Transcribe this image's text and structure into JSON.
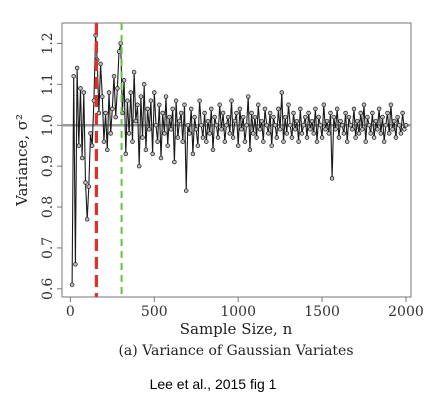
{
  "chart_data": {
    "type": "line",
    "xlabel": "Sample Size, n",
    "ylabel": "Variance, σ²",
    "xlim": [
      -50,
      2030
    ],
    "ylim": [
      0.58,
      1.25
    ],
    "xticks": [
      0,
      500,
      1000,
      1500,
      2000
    ],
    "xtick_labels": [
      "0",
      "500",
      "1000",
      "1500",
      "2000"
    ],
    "yticks": [
      0.6,
      0.7,
      0.8,
      0.9,
      1.0,
      1.1,
      1.2
    ],
    "ytick_labels": [
      "0.6",
      "0.7",
      "0.8",
      "0.9",
      "1.0",
      "1.1",
      "1.2"
    ],
    "grid": false,
    "reference_line": {
      "y": 1.0,
      "color": "#9a9a9a"
    },
    "vlines": [
      {
        "x": 155,
        "color": "#e0302a",
        "style": "dashed"
      },
      {
        "x": 305,
        "color": "#5fc53f",
        "style": "dashed"
      }
    ],
    "series": [
      {
        "color": "#1a1a1a",
        "marker": "circle",
        "x": [
          10,
          20,
          30,
          40,
          50,
          60,
          70,
          80,
          90,
          100,
          110,
          120,
          130,
          140,
          150,
          160,
          170,
          180,
          190,
          200,
          210,
          220,
          230,
          240,
          250,
          260,
          270,
          280,
          290,
          300,
          310,
          320,
          330,
          340,
          350,
          360,
          370,
          380,
          390,
          400,
          410,
          420,
          430,
          440,
          450,
          460,
          470,
          480,
          490,
          500,
          510,
          520,
          530,
          540,
          550,
          560,
          570,
          580,
          590,
          600,
          610,
          620,
          630,
          640,
          650,
          660,
          670,
          680,
          690,
          700,
          710,
          720,
          730,
          740,
          750,
          760,
          770,
          780,
          790,
          800,
          810,
          820,
          830,
          840,
          850,
          860,
          870,
          880,
          890,
          900,
          910,
          920,
          930,
          940,
          950,
          960,
          970,
          980,
          990,
          1000,
          1010,
          1020,
          1030,
          1040,
          1050,
          1060,
          1070,
          1080,
          1090,
          1100,
          1110,
          1120,
          1130,
          1140,
          1150,
          1160,
          1170,
          1180,
          1190,
          1200,
          1210,
          1220,
          1230,
          1240,
          1250,
          1260,
          1270,
          1280,
          1290,
          1300,
          1310,
          1320,
          1330,
          1340,
          1350,
          1360,
          1370,
          1380,
          1390,
          1400,
          1410,
          1420,
          1430,
          1440,
          1450,
          1460,
          1470,
          1480,
          1490,
          1500,
          1510,
          1520,
          1530,
          1540,
          1550,
          1560,
          1570,
          1580,
          1590,
          1600,
          1610,
          1620,
          1630,
          1640,
          1650,
          1660,
          1670,
          1680,
          1690,
          1700,
          1710,
          1720,
          1730,
          1740,
          1750,
          1760,
          1770,
          1780,
          1790,
          1800,
          1810,
          1820,
          1830,
          1840,
          1850,
          1860,
          1870,
          1880,
          1890,
          1900,
          1910,
          1920,
          1930,
          1940,
          1950,
          1960,
          1970,
          1980,
          1990,
          2000
        ],
        "y": [
          0.61,
          1.12,
          0.66,
          1.14,
          0.95,
          1.09,
          0.92,
          1.08,
          0.86,
          0.77,
          0.85,
          0.98,
          0.95,
          1.06,
          1.22,
          1.16,
          1.03,
          1.15,
          1.07,
          0.96,
          1.03,
          0.94,
          1.08,
          0.98,
          1.04,
          1.12,
          1.02,
          1.09,
          1.18,
          1.2,
          1.03,
          1.11,
          0.93,
          1.06,
          0.98,
          1.08,
          0.96,
          1.13,
          1.01,
          1.05,
          0.9,
          1.07,
          0.97,
          1.1,
          0.94,
          1.04,
          0.99,
          1.06,
          0.93,
          1.08,
          1.0,
          0.96,
          1.05,
          0.92,
          1.03,
          0.98,
          1.07,
          0.95,
          1.02,
          0.99,
          1.04,
          0.91,
          1.06,
          0.97,
          1.01,
          1.03,
          0.96,
          1.05,
          0.84,
          1.0,
          0.98,
          1.04,
          0.93,
          1.02,
          0.99,
          0.95,
          1.06,
          1.0,
          0.97,
          1.03,
          0.96,
          1.01,
          0.98,
          1.04,
          0.94,
          1.02,
          1.0,
          0.97,
          1.05,
          0.99,
          1.03,
          0.96,
          1.0,
          1.02,
          0.98,
          1.06,
          0.97,
          1.01,
          1.03,
          0.95,
          1.04,
          0.99,
          1.02,
          0.96,
          1.0,
          1.07,
          0.94,
          1.03,
          0.98,
          1.02,
          0.97,
          1.05,
          0.99,
          1.01,
          0.96,
          1.04,
          1.0,
          0.98,
          1.03,
          0.95,
          1.02,
          1.0,
          0.97,
          1.04,
          0.99,
          1.08,
          0.96,
          1.02,
          0.98,
          1.05,
          1.0,
          0.97,
          1.03,
          0.99,
          1.01,
          0.96,
          1.04,
          0.98,
          1.0,
          1.02,
          0.97,
          1.03,
          0.99,
          1.01,
          0.98,
          1.04,
          0.96,
          1.02,
          1.0,
          0.97,
          1.05,
          0.99,
          1.01,
          0.98,
          1.03,
          0.87,
          1.02,
          0.99,
          1.04,
          0.97,
          1.01,
          1.0,
          0.98,
          1.03,
          0.96,
          1.02,
          1.0,
          0.99,
          1.04,
          0.97,
          1.01,
          0.98,
          1.03,
          0.99,
          1.05,
          0.96,
          1.02,
          1.0,
          0.98,
          1.03,
          0.97,
          1.01,
          0.99,
          1.04,
          0.98,
          1.02,
          0.96,
          1.0,
          1.03,
          0.98,
          1.05,
          0.99,
          1.01,
          0.97,
          1.02,
          1.0,
          0.98,
          1.03,
          0.99,
          1.0
        ]
      }
    ]
  },
  "caption": "(a) Variance of Gaussian Variates",
  "credit": "Lee et al., 2015 fig 1",
  "colors": {
    "plot_border": "#777777",
    "line": "#1a1a1a",
    "marker_fill": "#bbbbbb"
  }
}
